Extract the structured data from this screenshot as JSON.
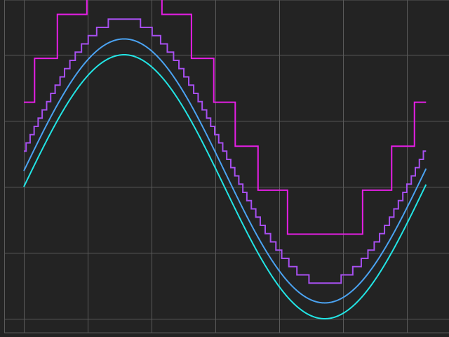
{
  "chart_data": {
    "type": "line",
    "title": "",
    "xlabel": "",
    "ylabel": "",
    "xlim": [
      -0.35,
      6.6
    ],
    "ylim": [
      -1.1,
      1.45
    ],
    "grid": true,
    "x_gridlines": [
      0,
      1,
      2,
      3,
      4,
      5,
      6
    ],
    "y_gridlines": [
      -1,
      -0.5,
      0,
      0.5,
      1
    ],
    "background": "#232323",
    "grid_color": "#5a5a5a",
    "series": [
      {
        "kind": "sine",
        "amplitude": 1.0,
        "offset": 0.0,
        "color": "#22e5e5"
      },
      {
        "kind": "sine",
        "amplitude": 1.0,
        "offset": 0.12,
        "color": "#4ba3f2"
      },
      {
        "kind": "quantized_sine",
        "step": 0.0625,
        "amplitude": 1.0,
        "offset": 0.27,
        "color": "#a74ff0"
      },
      {
        "kind": "quantized_sine",
        "step": 0.333,
        "amplitude": 1.0,
        "offset": 0.64,
        "color": "#e51ee5"
      }
    ],
    "x_range": [
      0,
      6.3
    ]
  }
}
